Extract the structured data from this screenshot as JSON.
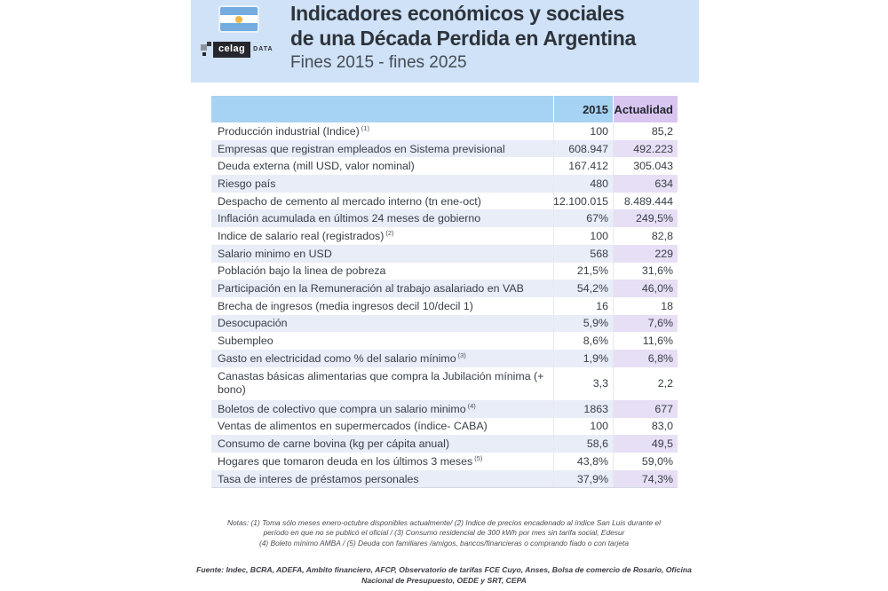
{
  "header": {
    "title_line1": "Indicadores económicos y sociales",
    "title_line2": "de una Década Perdida en Argentina",
    "subtitle": "Fines 2015 - fines 2025",
    "logo_brand": "celag",
    "logo_suffix": "DATA",
    "flag_icon": "argentina-flag"
  },
  "chart_data": {
    "type": "table",
    "title": "Indicadores económicos y sociales de una Década Perdida en Argentina",
    "subtitle": "Fines 2015 - fines 2025",
    "columns": [
      "",
      "2015",
      "Actualidad"
    ],
    "header_colors": {
      "col_2015_bg": "#a6d2f4",
      "col_actualidad_bg": "#d8c6f1"
    },
    "rows": [
      {
        "label": "Producción industrial (Indice)",
        "sup": "(1)",
        "y2015": "100",
        "act": "85,2"
      },
      {
        "label": "Empresas que registran empleados en Sistema previsional",
        "sup": "",
        "y2015": "608.947",
        "act": "492.223"
      },
      {
        "label": "Deuda externa (mill USD, valor nominal)",
        "sup": "",
        "y2015": "167.412",
        "act": "305.043"
      },
      {
        "label": "Riesgo país",
        "sup": "",
        "y2015": "480",
        "act": "634"
      },
      {
        "label": "Despacho de cemento al mercado interno (tn ene-oct)",
        "sup": "",
        "y2015": "12.100.015",
        "act": "8.489.444"
      },
      {
        "label": "Inflación acumulada en últimos 24 meses de gobierno",
        "sup": "",
        "y2015": "67%",
        "act": "249,5%"
      },
      {
        "label": "Indice de salario real (registrados)",
        "sup": "(2)",
        "y2015": "100",
        "act": "82,8"
      },
      {
        "label": "Salario minimo en USD",
        "sup": "",
        "y2015": "568",
        "act": "229"
      },
      {
        "label": "Población bajo la linea de pobreza",
        "sup": "",
        "y2015": "21,5%",
        "act": "31,6%"
      },
      {
        "label": "Participación en la Remuneración al trabajo asalariado en VAB",
        "sup": "",
        "y2015": "54,2%",
        "act": "46,0%"
      },
      {
        "label": "Brecha de ingresos (media ingresos decil 10/decil 1)",
        "sup": "",
        "y2015": "16",
        "act": "18"
      },
      {
        "label": "Desocupación",
        "sup": "",
        "y2015": "5,9%",
        "act": "7,6%"
      },
      {
        "label": "Subempleo",
        "sup": "",
        "y2015": "8,6%",
        "act": "11,6%"
      },
      {
        "label": "Gasto en electricidad como % del salario mínimo",
        "sup": "(3)",
        "y2015": "1,9%",
        "act": "6,8%"
      },
      {
        "label": "Canastas básicas alimentarias que compra la Jubilación mínima (+ bono)",
        "sup": "",
        "y2015": "3,3",
        "act": "2,2"
      },
      {
        "label": "Boletos de colectivo que compra un salario minimo",
        "sup": "(4)",
        "y2015": "1863",
        "act": "677"
      },
      {
        "label": "Ventas de alimentos en supermercados (índice- CABA)",
        "sup": "",
        "y2015": "100",
        "act": "83,0"
      },
      {
        "label": "Consumo de carne bovina (kg per cápita anual)",
        "sup": "",
        "y2015": "58,6",
        "act": "49,5"
      },
      {
        "label": "Hogares que tomaron deuda en los últimos 3 meses",
        "sup": "(5)",
        "y2015": "43,8%",
        "act": "59,0%"
      },
      {
        "label": "Tasa de interes de préstamos personales",
        "sup": "",
        "y2015": "37,9%",
        "act": "74,3%"
      }
    ]
  },
  "footer": {
    "notes_lines": [
      "Notas: (1) Toma sólo meses enero-octubre disponibles actualmente/ (2) Indice de precios encadenado al índice San Luis durante el",
      "período en que no se publicó el oficial / (3) Consumo residencial de 300 kWh por mes sin tarifa social, Edesur",
      "(4) Boleto mínimo AMBA / (5) Deuda con familiares /amigos, bancos/financieras o comprando fiado o con tarjeta"
    ],
    "fuente_lines": [
      "Fuente: Indec, BCRA, ADEFA, Ambito financiero, AFCP, Observatorio de tarifas FCE Cuyo, Anses, Bolsa de comercio de Rosario, Oficina",
      "Nacional de Presupuesto, OEDE y SRT, CEPA"
    ]
  },
  "colors": {
    "band_bg": "#cfe2f7",
    "table_header_blue": "#a6d2f4",
    "table_header_purple": "#d8c6f1",
    "stripe_blue": "#e9edf8",
    "stripe_purple": "#e7dff5",
    "flag_blue": "#74acdf",
    "flag_sun": "#efb648",
    "text_dark": "#383d46"
  }
}
